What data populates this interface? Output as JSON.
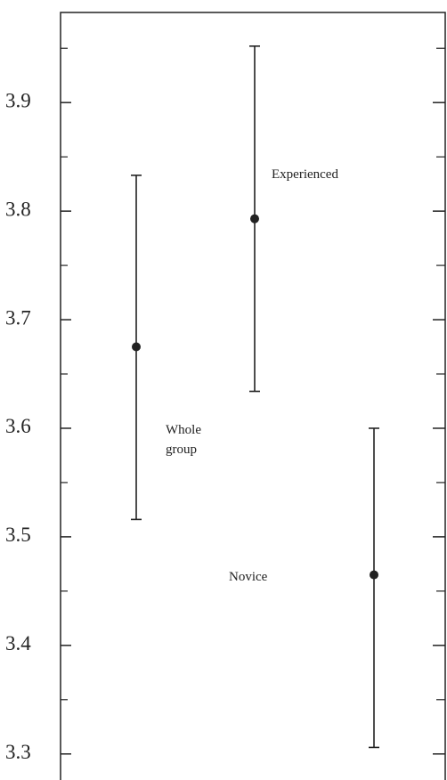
{
  "chart_data": {
    "type": "errorbar",
    "series": [
      {
        "name": "Whole group",
        "value": 3.675,
        "lower": 3.516,
        "upper": 3.833
      },
      {
        "name": "Experienced",
        "value": 3.793,
        "lower": 3.634,
        "upper": 3.952
      },
      {
        "name": "Novice",
        "value": 3.465,
        "lower": 3.306,
        "upper": 3.6
      }
    ],
    "color": "#222222",
    "ylim": [
      3.276,
      3.983
    ],
    "yticks": [
      3.3,
      3.4,
      3.5,
      3.6,
      3.7,
      3.8,
      3.9
    ],
    "minor_yticks": [
      3.35,
      3.45,
      3.55,
      3.65,
      3.75,
      3.85,
      3.95
    ]
  }
}
